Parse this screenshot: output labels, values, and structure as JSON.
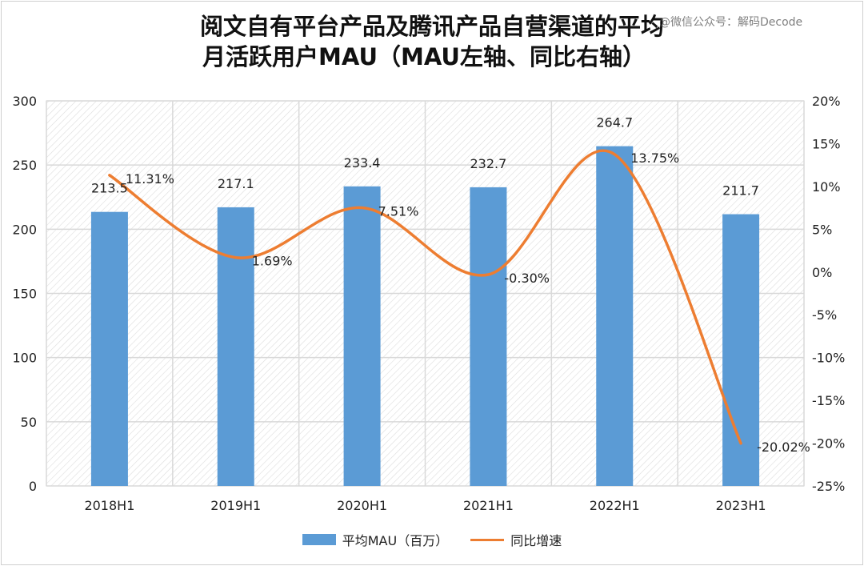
{
  "title": {
    "line1": "阅文自有平台产品及腾讯产品自营渠道的平均",
    "line2": "月活跃用户MAU（MAU左轴、同比右轴）"
  },
  "watermark": "@微信公众号：解码Decode",
  "colors": {
    "bar": "#5b9bd5",
    "line": "#ed7d31",
    "grid": "#d9d9d9"
  },
  "chart_data": {
    "type": "bar",
    "categories": [
      "2018H1",
      "2019H1",
      "2020H1",
      "2021H1",
      "2022H1",
      "2023H1"
    ],
    "series": [
      {
        "name": "平均MAU（百万）",
        "type": "bar",
        "axis": "left",
        "values": [
          213.5,
          217.1,
          233.4,
          232.7,
          264.7,
          211.7
        ],
        "labels": [
          "213.5",
          "217.1",
          "233.4",
          "232.7",
          "264.7",
          "211.7"
        ]
      },
      {
        "name": "同比增速",
        "type": "line",
        "axis": "right",
        "smooth": true,
        "values": [
          11.31,
          1.69,
          7.51,
          -0.3,
          13.75,
          -20.02
        ],
        "labels": [
          "11.31%",
          "1.69%",
          "7.51%",
          "-0.30%",
          "13.75%",
          "-20.02%"
        ]
      }
    ],
    "ylim_left": [
      0,
      300
    ],
    "yticks_left": [
      "0",
      "50",
      "100",
      "150",
      "200",
      "250",
      "300"
    ],
    "ylim_right": [
      -25,
      20
    ],
    "yticks_right": [
      "-25%",
      "-20%",
      "-15%",
      "-10%",
      "-5%",
      "0%",
      "5%",
      "10%",
      "15%",
      "20%"
    ],
    "grid": true,
    "legend_position": "bottom"
  }
}
